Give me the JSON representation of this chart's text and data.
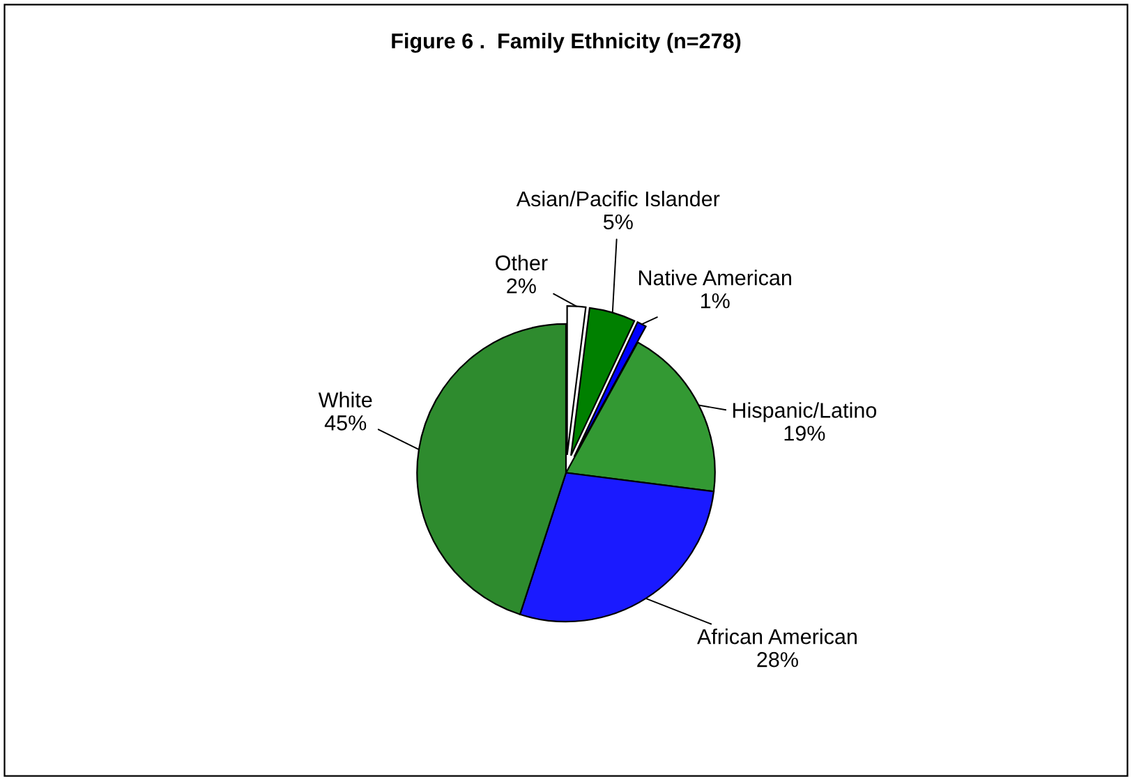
{
  "chart_data": {
    "type": "pie",
    "title": "Figure 6 .  Family Ethnicity (n=278)",
    "categories": [
      "Other",
      "Asian/Pacific Islander",
      "Native American",
      "Hispanic/Latino",
      "African American",
      "White"
    ],
    "values": [
      2,
      5,
      1,
      19,
      28,
      45
    ],
    "value_labels": [
      "2%",
      "5%",
      "1%",
      "19%",
      "28%",
      "45%"
    ],
    "colors": [
      "#ffffff",
      "#008000",
      "#0000ff",
      "#339933",
      "#1a1aff",
      "#2e8b2e"
    ]
  }
}
